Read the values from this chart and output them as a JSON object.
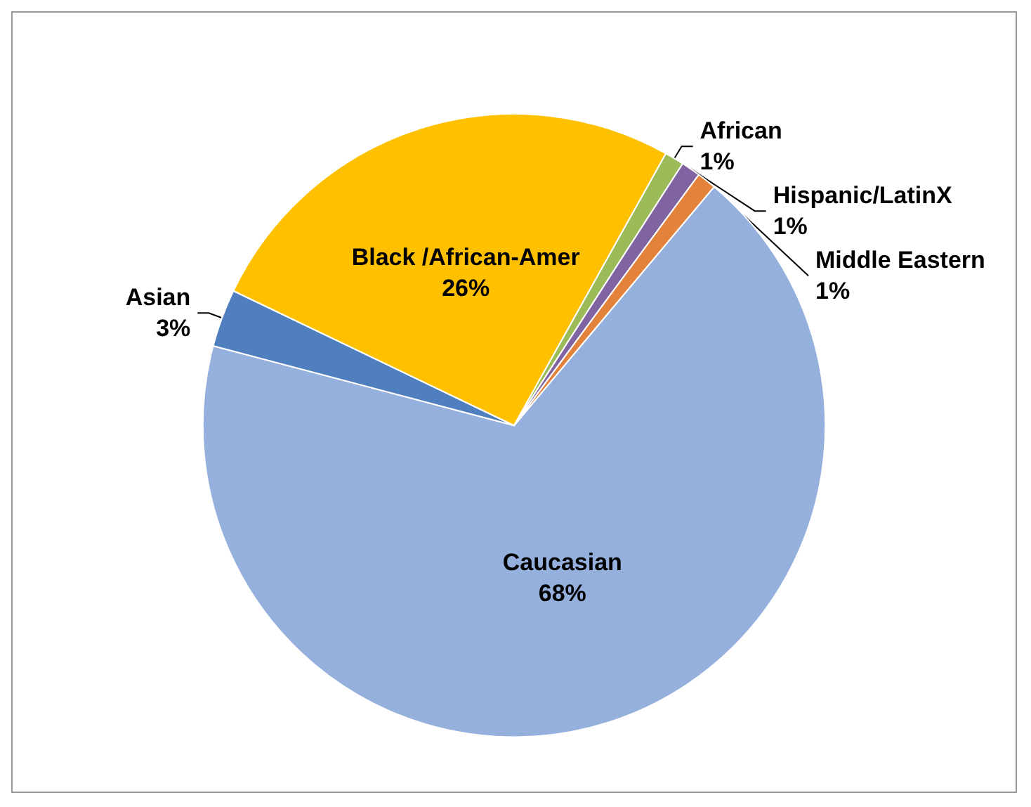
{
  "chart_data": {
    "type": "pie",
    "categories": [
      "Caucasian",
      "Asian",
      "Black /African-Amer",
      "African",
      "Hispanic/LatinX",
      "Middle Eastern"
    ],
    "values": [
      68,
      3,
      26,
      1,
      1,
      1
    ],
    "colors": [
      "#95b0dc",
      "#4f7fbf",
      "#ffc000",
      "#9bbb59",
      "#8064a2",
      "#e3823a"
    ],
    "value_labels": [
      "68%",
      "3%",
      "26%",
      "1%",
      "1%",
      "1%"
    ]
  }
}
